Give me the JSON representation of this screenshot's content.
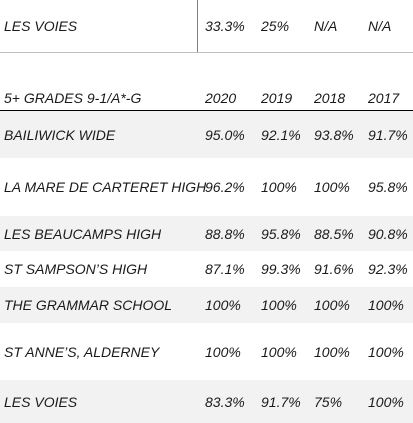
{
  "top_row": {
    "school": "LES VOIES",
    "values": [
      "33.3%",
      "25%",
      "N/A",
      "N/A"
    ]
  },
  "table": {
    "header": {
      "label": "5+ GRADES 9-1/A*-G",
      "years": [
        "2020",
        "2019",
        "2018",
        "2017"
      ]
    },
    "rows": [
      {
        "school": "BAILIWICK WIDE",
        "values": [
          "95.0%",
          "92.1%",
          "93.8%",
          "91.7%"
        ]
      },
      {
        "school": "LA MARE DE CARTERET HIGH",
        "values": [
          "96.2%",
          "100%",
          "100%",
          "95.8%"
        ]
      },
      {
        "school": "LES BEAUCAMPS HIGH",
        "values": [
          "88.8%",
          "95.8%",
          "88.5%",
          "90.8%"
        ]
      },
      {
        "school": "ST SAMPSON’S HIGH",
        "values": [
          "87.1%",
          "99.3%",
          "91.6%",
          "92.3%"
        ]
      },
      {
        "school": "THE GRAMMAR SCHOOL",
        "values": [
          "100%",
          "100%",
          "100%",
          "100%"
        ]
      },
      {
        "school": "ST ANNE’S, ALDERNEY",
        "values": [
          "100%",
          "100%",
          "100%",
          "100%"
        ]
      },
      {
        "school": "LES VOIES",
        "values": [
          "83.3%",
          "91.7%",
          "75%",
          "100%"
        ]
      }
    ]
  }
}
